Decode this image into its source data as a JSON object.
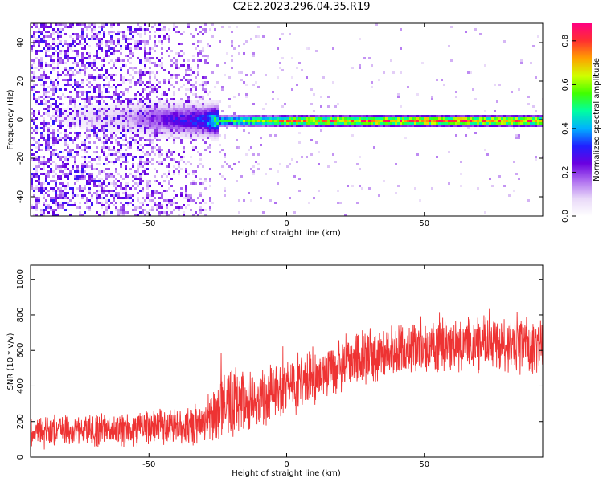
{
  "title": "C2E2.2023.296.04.35.R19",
  "colors": {
    "snr_line": "#ee3333",
    "colormap": [
      "#ffffff",
      "#e8d8f8",
      "#b070f0",
      "#6a00e0",
      "#2020ff",
      "#00b0ff",
      "#00ffa0",
      "#40ff00",
      "#d0ff00",
      "#ffa000",
      "#ff3030",
      "#ff0080"
    ]
  },
  "chart_data": [
    {
      "type": "heatmap",
      "title": "C2E2.2023.296.04.35.R19",
      "xlabel": "Height of straight line (km)",
      "ylabel": "Frequency (Hz)",
      "xlim": [
        -93,
        93
      ],
      "ylim": [
        -50,
        50
      ],
      "x_ticks": [
        "-50",
        "0",
        "50"
      ],
      "y_ticks": [
        "-40",
        "-20",
        "0",
        "20",
        "40"
      ],
      "colorbar": {
        "label": "Normalized spectral amplitude",
        "range": [
          0,
          0.88
        ],
        "ticks": [
          "0.0",
          "0.2",
          "0.4",
          "0.6",
          "0.8"
        ]
      },
      "description_points": [
        {
          "x": -93,
          "noise_density": 0.9,
          "line_amplitude": 0.0
        },
        {
          "x": -60,
          "noise_density": 0.8,
          "line_amplitude": 0.1
        },
        {
          "x": -45,
          "noise_density": 0.6,
          "line_amplitude": 0.25
        },
        {
          "x": -30,
          "noise_density": 0.4,
          "line_amplitude": 0.35
        },
        {
          "x": -27,
          "noise_density": 0.15,
          "line_amplitude": 0.5
        },
        {
          "x": 0,
          "noise_density": 0.05,
          "line_amplitude": 0.75
        },
        {
          "x": 50,
          "noise_density": 0.03,
          "line_amplitude": 0.85
        },
        {
          "x": 93,
          "noise_density": 0.03,
          "line_amplitude": 0.8
        }
      ]
    },
    {
      "type": "line",
      "xlabel": "Height of straight line (km)",
      "ylabel": "SNR (10 * v/v)",
      "xlim": [
        -93,
        93
      ],
      "ylim": [
        0,
        1080
      ],
      "x_ticks": [
        "-50",
        "0",
        "50"
      ],
      "y_ticks": [
        "0",
        "200",
        "400",
        "600",
        "800",
        "1000"
      ],
      "trend": {
        "x": [
          -93,
          -60,
          -35,
          -28,
          -25,
          -20,
          -10,
          0,
          10,
          20,
          30,
          40,
          50,
          60,
          70,
          80,
          93
        ],
        "center": [
          150,
          155,
          175,
          185,
          260,
          300,
          330,
          380,
          450,
          520,
          560,
          600,
          620,
          630,
          640,
          630,
          620
        ],
        "spread": [
          130,
          140,
          160,
          170,
          250,
          280,
          250,
          240,
          230,
          220,
          220,
          220,
          220,
          230,
          230,
          240,
          240
        ]
      }
    }
  ]
}
